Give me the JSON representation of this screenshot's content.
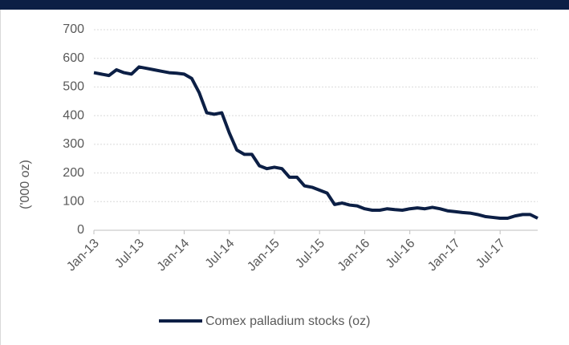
{
  "chart_data": {
    "type": "line",
    "y_label": "('000 oz)",
    "x": [
      "Jan-13",
      "Feb-13",
      "Mar-13",
      "Apr-13",
      "May-13",
      "Jun-13",
      "Jul-13",
      "Aug-13",
      "Sep-13",
      "Oct-13",
      "Nov-13",
      "Dec-13",
      "Jan-14",
      "Feb-14",
      "Mar-14",
      "Apr-14",
      "May-14",
      "Jun-14",
      "Jul-14",
      "Aug-14",
      "Sep-14",
      "Oct-14",
      "Nov-14",
      "Dec-14",
      "Jan-15",
      "Feb-15",
      "Mar-15",
      "Apr-15",
      "May-15",
      "Jun-15",
      "Jul-15",
      "Aug-15",
      "Sep-15",
      "Oct-15",
      "Nov-15",
      "Dec-15",
      "Jan-16",
      "Feb-16",
      "Mar-16",
      "Apr-16",
      "May-16",
      "Jun-16",
      "Jul-16",
      "Aug-16",
      "Sep-16",
      "Oct-16",
      "Nov-16",
      "Dec-16",
      "Jan-17",
      "Feb-17",
      "Mar-17",
      "Apr-17",
      "May-17",
      "Jun-17",
      "Jul-17",
      "Aug-17",
      "Sep-17",
      "Oct-17",
      "Nov-17",
      "Dec-17"
    ],
    "series": [
      {
        "name": "Comex palladium stocks (oz)",
        "color": "#0c1f45",
        "values": [
          550,
          545,
          540,
          560,
          550,
          545,
          570,
          565,
          560,
          555,
          550,
          548,
          545,
          530,
          480,
          410,
          405,
          410,
          340,
          280,
          265,
          265,
          225,
          215,
          220,
          215,
          185,
          185,
          155,
          150,
          140,
          130,
          90,
          95,
          88,
          85,
          75,
          70,
          70,
          75,
          72,
          70,
          75,
          78,
          75,
          80,
          75,
          68,
          65,
          62,
          60,
          55,
          48,
          45,
          42,
          42,
          50,
          55,
          55,
          42
        ]
      }
    ],
    "xticks": [
      "Jan-13",
      "Jul-13",
      "Jan-14",
      "Jul-14",
      "Jan-15",
      "Jul-15",
      "Jan-16",
      "Jul-16",
      "Jan-17",
      "Jul-17"
    ],
    "ylim": [
      0,
      700
    ],
    "yticks": [
      0,
      100,
      200,
      300,
      400,
      500,
      600,
      700
    ],
    "grid": true,
    "legend": "bottom"
  }
}
